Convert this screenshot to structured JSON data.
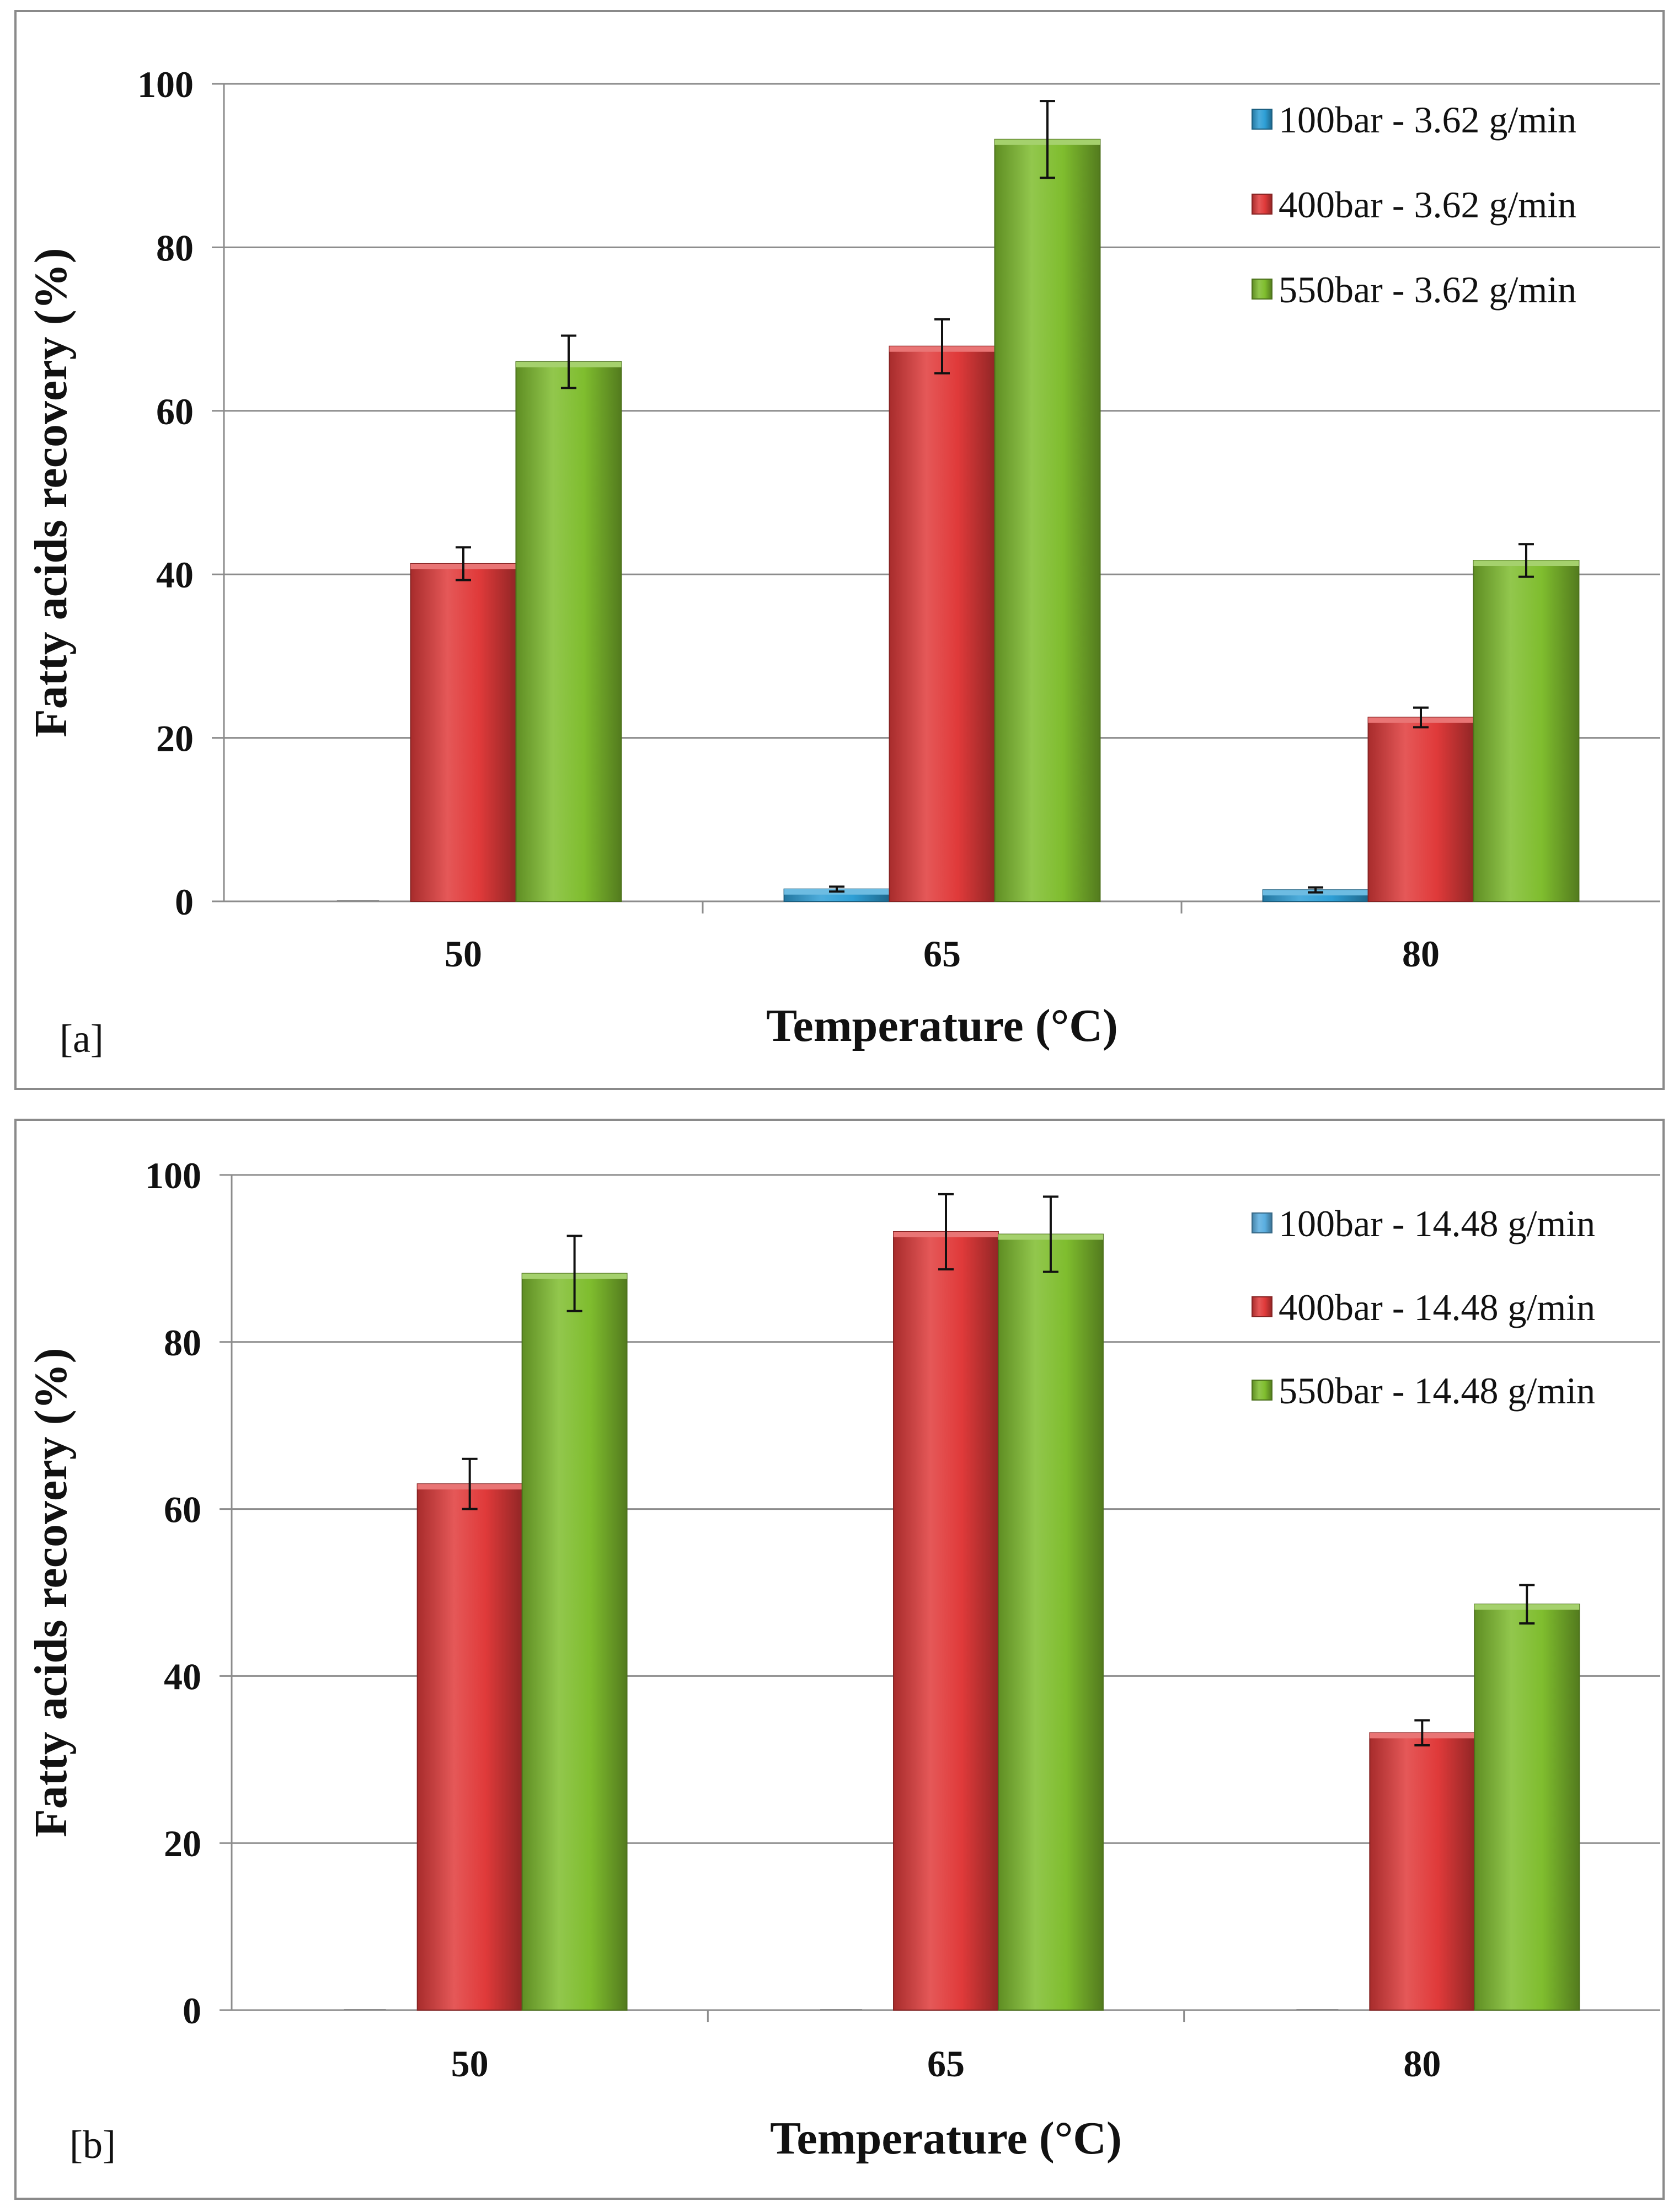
{
  "chart_data": [
    {
      "type": "bar",
      "panel_label": "[a]",
      "xlabel": "Temperature (°C)",
      "ylabel": "Fatty acids recovery (%)",
      "ylim": [
        0,
        100
      ],
      "yticks": [
        "0",
        "20",
        "40",
        "60",
        "80",
        "100"
      ],
      "categories": [
        "50",
        "65",
        "80"
      ],
      "legend_position": "top-right",
      "grid": true,
      "series": [
        {
          "name": "100bar - 3.62 g/min",
          "color": "#2e9fd6",
          "values": [
            0,
            1.5,
            1.4
          ],
          "errors": [
            0,
            0.3,
            0.3
          ]
        },
        {
          "name": "400bar - 3.62 g/min",
          "color": "#e03a3a",
          "values": [
            41.3,
            67.9,
            22.5
          ],
          "errors": [
            2.0,
            3.3,
            1.2
          ]
        },
        {
          "name": "550bar - 3.62 g/min",
          "color": "#7fbd2e",
          "values": [
            66.0,
            93.2,
            41.7
          ],
          "errors": [
            3.2,
            4.7,
            2.0
          ]
        }
      ]
    },
    {
      "type": "bar",
      "panel_label": "[b]",
      "xlabel": "Temperature (°C)",
      "ylabel": "Fatty acids recovery (%)",
      "ylim": [
        0,
        100
      ],
      "yticks": [
        "0",
        "20",
        "40",
        "60",
        "80",
        "100"
      ],
      "categories": [
        "50",
        "65",
        "80"
      ],
      "legend_position": "top-right",
      "grid": true,
      "series": [
        {
          "name": "100bar - 14.48 g/min",
          "color": "#5aaee0",
          "values": [
            0,
            0,
            0
          ],
          "errors": [
            0,
            0,
            0
          ]
        },
        {
          "name": "400bar - 14.48 g/min",
          "color": "#e03a3a",
          "values": [
            63.0,
            93.2,
            33.2
          ],
          "errors": [
            3.0,
            4.5,
            1.5
          ]
        },
        {
          "name": "550bar - 14.48 g/min",
          "color": "#7fbd2e",
          "values": [
            88.2,
            92.9,
            48.6
          ],
          "errors": [
            4.5,
            4.5,
            2.3
          ]
        }
      ]
    }
  ]
}
